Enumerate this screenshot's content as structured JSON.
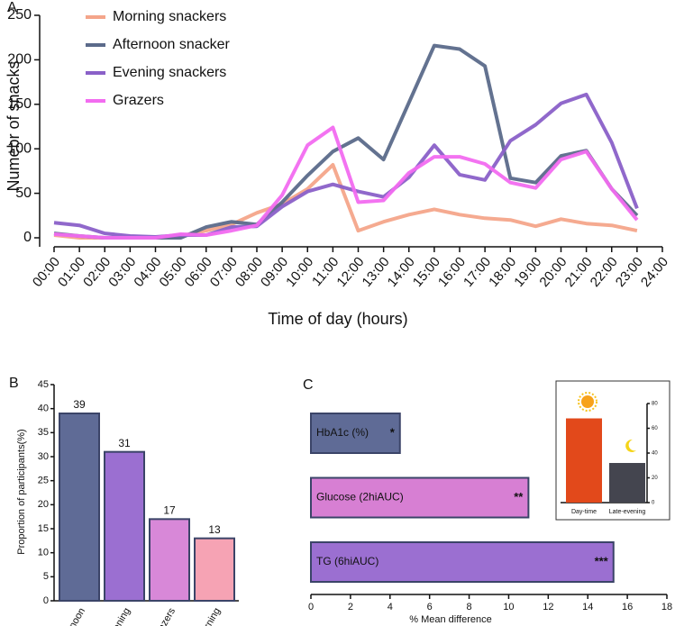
{
  "chart_data": [
    {
      "type": "line",
      "panel_label": "A",
      "ylabel": "Numebr of snacks",
      "xlabel": "Time of day (hours)",
      "categories": [
        "00:00",
        "01:00",
        "02:00",
        "03:00",
        "04:00",
        "05:00",
        "06:00",
        "07:00",
        "08:00",
        "09:00",
        "10:00",
        "11:00",
        "12:00",
        "13:00",
        "14:00",
        "15:00",
        "16:00",
        "17:00",
        "18:00",
        "19:00",
        "20:00",
        "21:00",
        "22:00",
        "23:00",
        "24:00"
      ],
      "ylim": [
        0,
        250
      ],
      "yticks": [
        0,
        50,
        100,
        150,
        200,
        250
      ],
      "legend": "upper left",
      "series": [
        {
          "name": "Morning snackers",
          "color": "#f4a58a",
          "values": [
            3,
            0,
            0,
            0,
            0,
            2,
            8,
            15,
            28,
            38,
            55,
            82,
            8,
            18,
            26,
            32,
            26,
            22,
            20,
            13,
            21,
            16,
            14,
            8,
            null
          ]
        },
        {
          "name": "Afternoon snacker",
          "color": "#5b6a8a",
          "values": [
            5,
            2,
            0,
            0,
            0,
            0,
            12,
            18,
            15,
            40,
            70,
            97,
            112,
            88,
            152,
            216,
            212,
            193,
            67,
            62,
            92,
            98,
            55,
            25,
            null
          ]
        },
        {
          "name": "Evening snackers",
          "color": "#8a60c8",
          "values": [
            17,
            14,
            5,
            2,
            1,
            3,
            3,
            12,
            13,
            35,
            52,
            60,
            52,
            46,
            68,
            104,
            71,
            65,
            109,
            127,
            151,
            161,
            107,
            33,
            null
          ]
        },
        {
          "name": "Grazers",
          "color": "#f26cf0",
          "values": [
            4,
            2,
            0,
            0,
            0,
            4,
            3,
            8,
            14,
            48,
            104,
            124,
            40,
            42,
            73,
            91,
            91,
            83,
            62,
            56,
            88,
            97,
            55,
            20,
            null
          ]
        }
      ]
    },
    {
      "type": "bar",
      "panel_label": "B",
      "ylabel": "Proportion of participants(%)",
      "categories": [
        "Afternoon",
        "Evening",
        "Grazers",
        "Morning"
      ],
      "values": [
        39,
        31,
        17,
        13
      ],
      "colors": [
        "#5f6b96",
        "#9b6fd1",
        "#d888d8",
        "#f6a3b4"
      ],
      "ylim": [
        0,
        45
      ],
      "yticks": [
        0,
        5,
        10,
        15,
        20,
        25,
        30,
        35,
        40,
        45
      ]
    },
    {
      "type": "bar",
      "orientation": "horizontal",
      "panel_label": "C",
      "xlabel": "% Mean difference",
      "categories": [
        "HbA1c (%)",
        "Glucose (2hiAUC)",
        "TG (6hiAUC)"
      ],
      "values": [
        4.5,
        11,
        15.3
      ],
      "annotations": [
        "*",
        "**",
        "***"
      ],
      "colors": [
        "#5f6b96",
        "#d77fd3",
        "#9b6fd1"
      ],
      "xlim": [
        0,
        18
      ],
      "xticks": [
        0,
        2,
        4,
        6,
        8,
        10,
        12,
        14,
        16,
        18
      ]
    },
    {
      "type": "bar",
      "inset": true,
      "categories": [
        "Day-time",
        "Late-evening"
      ],
      "values": [
        68,
        32
      ],
      "colors": [
        "#e2491b",
        "#44454f"
      ],
      "ylim": [
        0,
        80
      ],
      "yticks": [
        0,
        20,
        40,
        60,
        80
      ]
    }
  ]
}
